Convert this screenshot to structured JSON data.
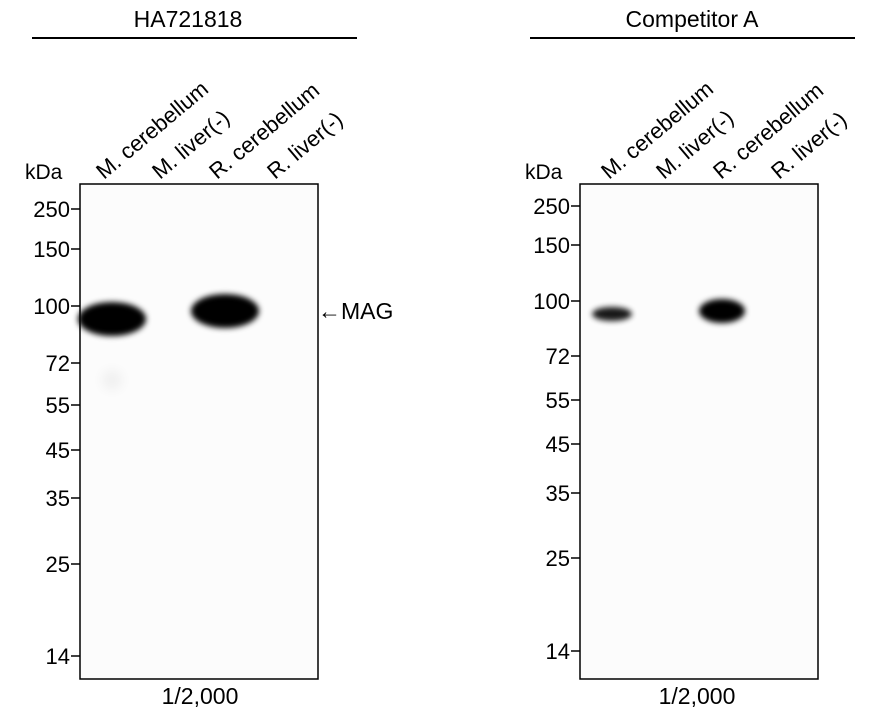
{
  "panels": [
    {
      "title": "HA721818",
      "unit": "kDa",
      "lanes": [
        "M. cerebellum",
        "M. liver(-)",
        "R. cerebellum",
        "R. liver(-)"
      ],
      "markers": [
        250,
        150,
        100,
        72,
        55,
        45,
        35,
        25,
        14
      ],
      "annotation": "←MAG",
      "footer": "1/2,000"
    },
    {
      "title": "Competitor A",
      "unit": "kDa",
      "lanes": [
        "M. cerebellum",
        "M. liver(-)",
        "R. cerebellum",
        "R. liver(-)"
      ],
      "markers": [
        250,
        150,
        100,
        72,
        55,
        45,
        35,
        25,
        14
      ],
      "footer": "1/2,000"
    }
  ]
}
